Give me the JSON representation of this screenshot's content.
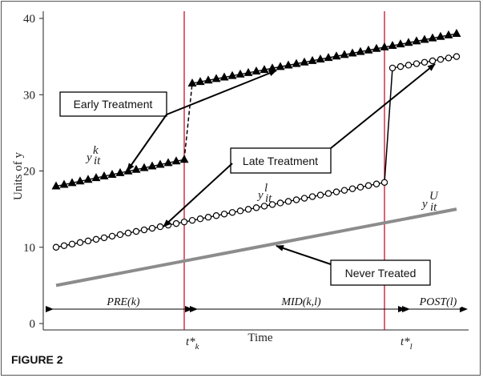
{
  "figure_label": "FIGURE 2",
  "chart_data": {
    "type": "line",
    "ylabel": "Units of y",
    "xlabel": "Time",
    "ylim": [
      0,
      40
    ],
    "yticks": [
      0,
      10,
      20,
      30,
      40
    ],
    "xlim": [
      0,
      52
    ],
    "grid": false,
    "treatment_times": {
      "early": {
        "x": 17,
        "label_main": "t*",
        "label_sub": "k"
      },
      "late": {
        "x": 42,
        "label_main": "t*",
        "label_sub": "l"
      }
    },
    "series": [
      {
        "marker": "triangle",
        "x_start": 1,
        "x_end": 51,
        "pre": [
          18,
          21.5
        ],
        "post": [
          31.5,
          38
        ],
        "break_at": 17
      },
      {
        "marker": "circle",
        "x_start": 1,
        "x_end": 51,
        "pre": [
          10,
          18.5
        ],
        "post": [
          33.5,
          35
        ],
        "break_at": 42
      },
      {
        "marker": "none",
        "x_start": 1,
        "x_end": 51,
        "values": [
          5,
          15
        ]
      }
    ],
    "series_labels": [
      {
        "main": "y",
        "sup": "k",
        "sub": "it"
      },
      {
        "main": "y",
        "sup": "l",
        "sub": "it"
      },
      {
        "main": "y",
        "sup": "U",
        "sub": "it"
      }
    ],
    "annotations": [
      "Early Treatment",
      "Late Treatment",
      "Never Treated"
    ],
    "periods": [
      "PRE(k)",
      "MID(k,l)",
      "POST(l)"
    ]
  }
}
